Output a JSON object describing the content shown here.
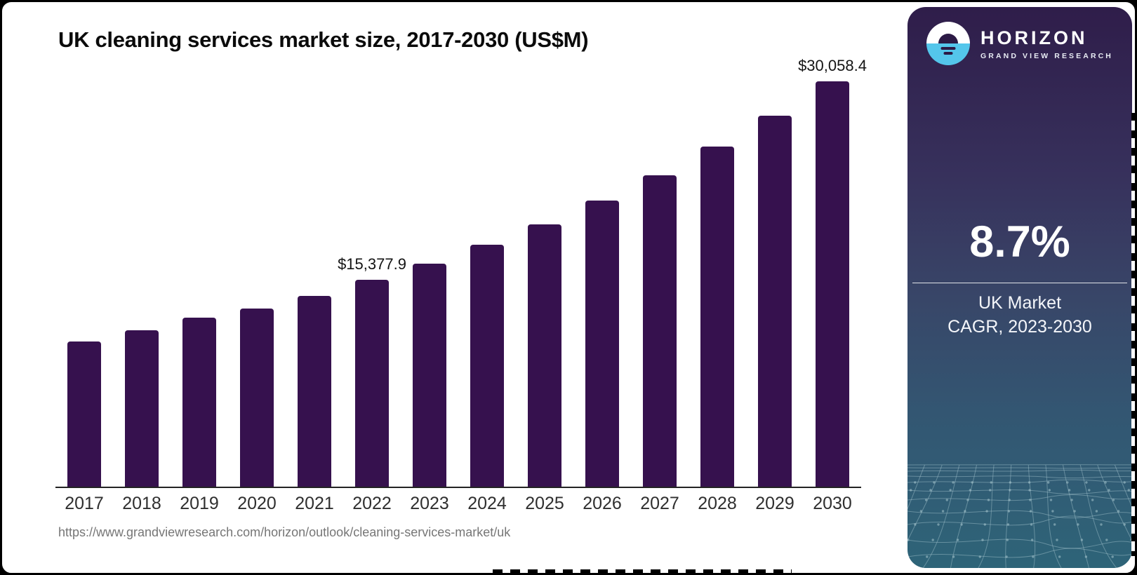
{
  "header": {
    "title": "UK cleaning services market size, 2017-2030 (US$M)"
  },
  "footer": {
    "source_url": "https://www.grandviewresearch.com/horizon/outlook/cleaning-services-market/uk"
  },
  "chart_data": {
    "type": "bar",
    "title": "UK cleaning services market size, 2017-2030 (US$M)",
    "categories": [
      "2017",
      "2018",
      "2019",
      "2020",
      "2021",
      "2022",
      "2023",
      "2024",
      "2025",
      "2026",
      "2027",
      "2028",
      "2029",
      "2030"
    ],
    "values": [
      10850,
      11680,
      12610,
      13290,
      14220,
      15377.9,
      16610,
      18010,
      19510,
      21230,
      23100,
      25220,
      27510,
      30058.4
    ],
    "point_labels": {
      "2022": "$15,377.9",
      "2030": "$30,058.4"
    },
    "xlabel": "",
    "ylabel": "US$M",
    "ylim": [
      0,
      30058.4
    ],
    "grid": false,
    "bar_color": "#36114E",
    "axis_color": "#232323",
    "label_color": "#141414",
    "tick_color": "#2f2f2f"
  },
  "side_panel": {
    "brand_name": "HORIZON",
    "brand_sub": "GRAND VIEW RESEARCH",
    "stat_value": "8.7%",
    "stat_caption_line1": "UK Market",
    "stat_caption_line2": "CAGR, 2023-2030",
    "colors": {
      "gradient_top": "#2F1D4A",
      "gradient_bottom": "#2E6478",
      "logo_blue": "#54C6EB",
      "logo_dark": "#2C1A45",
      "mesh_line": "#A9C8D0"
    }
  }
}
